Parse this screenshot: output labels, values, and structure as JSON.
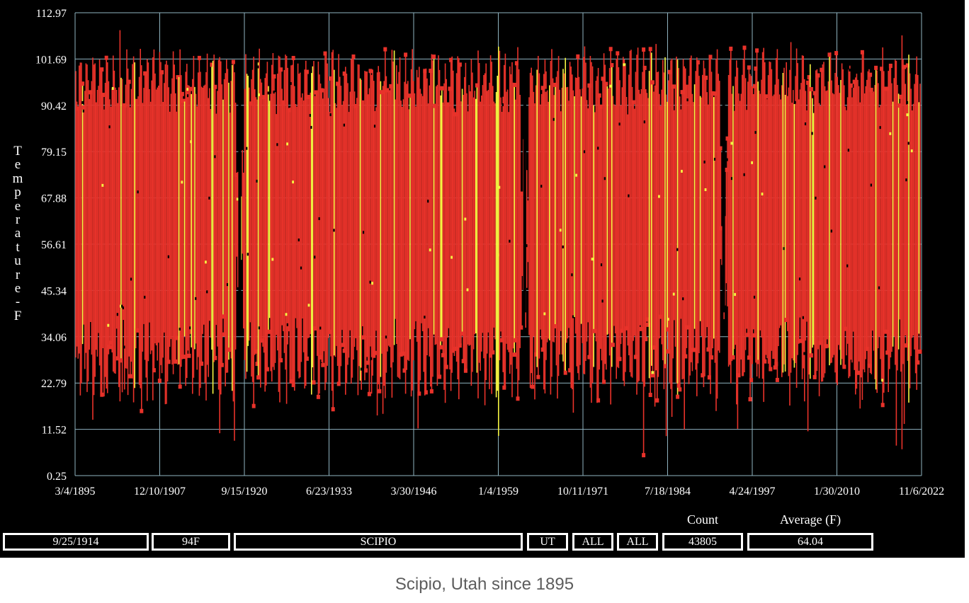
{
  "chart_data": {
    "type": "scatter",
    "title": "",
    "ylabel": "Temperature - F",
    "xlabel": "",
    "ylim": [
      0.25,
      112.97
    ],
    "y_ticks": [
      "112.97",
      "101.69",
      "90.42",
      "79.15",
      "67.88",
      "56.61",
      "45.34",
      "34.06",
      "22.79",
      "11.52",
      "0.25"
    ],
    "x_ticks": [
      "3/4/1895",
      "12/10/1907",
      "9/15/1920",
      "6/23/1933",
      "3/30/1946",
      "1/4/1959",
      "10/11/1971",
      "7/18/1984",
      "4/24/1997",
      "1/30/2010",
      "11/6/2022"
    ],
    "xlim_years": [
      1895.17,
      2022.85
    ],
    "grid": true,
    "series": [
      {
        "color": "#e8322a",
        "x_range": [
          1895.2,
          2022.8
        ],
        "y_range": [
          0.25,
          112
        ]
      },
      {
        "color": "#f5f542"
      }
    ],
    "gaps": [
      1920,
      1963,
      1993
    ]
  },
  "status_bar": {
    "date": "9/25/1914",
    "temp": "94F",
    "station": "SCIPIO",
    "state": "UT",
    "filter1": "ALL",
    "filter2": "ALL",
    "count_label": "Count",
    "count_value": "43805",
    "avg_label": "Average (F)",
    "avg_value": "64.04"
  },
  "caption": "Scipio, Utah since 1895",
  "colors": {
    "background": "#000000",
    "grid": "#8fb3c0",
    "marker": "#e8322a",
    "highlight": "#f5f542"
  }
}
